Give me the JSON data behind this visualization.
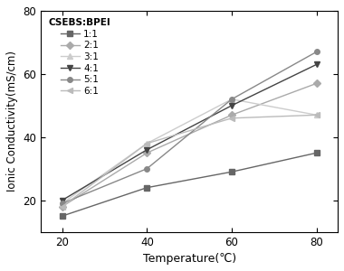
{
  "temperatures": [
    20,
    40,
    60,
    80
  ],
  "series": [
    {
      "label": "1:1",
      "values": [
        15,
        24,
        29,
        35
      ],
      "color": "#666666",
      "marker": "s",
      "markersize": 4,
      "linewidth": 1.0,
      "zorder": 2
    },
    {
      "label": "2:1",
      "values": [
        18,
        35,
        47,
        57
      ],
      "color": "#aaaaaa",
      "marker": "D",
      "markersize": 4,
      "linewidth": 1.0,
      "zorder": 3
    },
    {
      "label": "3:1",
      "values": [
        19,
        38,
        52,
        47
      ],
      "color": "#cccccc",
      "marker": "^",
      "markersize": 4,
      "linewidth": 1.0,
      "zorder": 4
    },
    {
      "label": "4:1",
      "values": [
        20,
        36,
        50,
        63
      ],
      "color": "#444444",
      "marker": "v",
      "markersize": 5,
      "linewidth": 1.0,
      "zorder": 5
    },
    {
      "label": "5:1",
      "values": [
        19,
        30,
        52,
        67
      ],
      "color": "#888888",
      "marker": "o",
      "markersize": 4,
      "linewidth": 1.0,
      "zorder": 6
    },
    {
      "label": "6:1",
      "values": [
        18,
        38,
        46,
        47
      ],
      "color": "#bbbbbb",
      "marker": "4",
      "markersize": 5,
      "linewidth": 1.0,
      "zorder": 7
    }
  ],
  "xlabel": "Temperature(℃)",
  "ylabel": "Ionic Conductivity(mS/cm)",
  "legend_title": "CSEBS:BPEI",
  "ylim": [
    10,
    80
  ],
  "xlim": [
    15,
    85
  ],
  "yticks": [
    20,
    40,
    60,
    80
  ],
  "xticks": [
    20,
    40,
    60,
    80
  ],
  "figsize": [
    3.8,
    3.0
  ],
  "dpi": 100
}
